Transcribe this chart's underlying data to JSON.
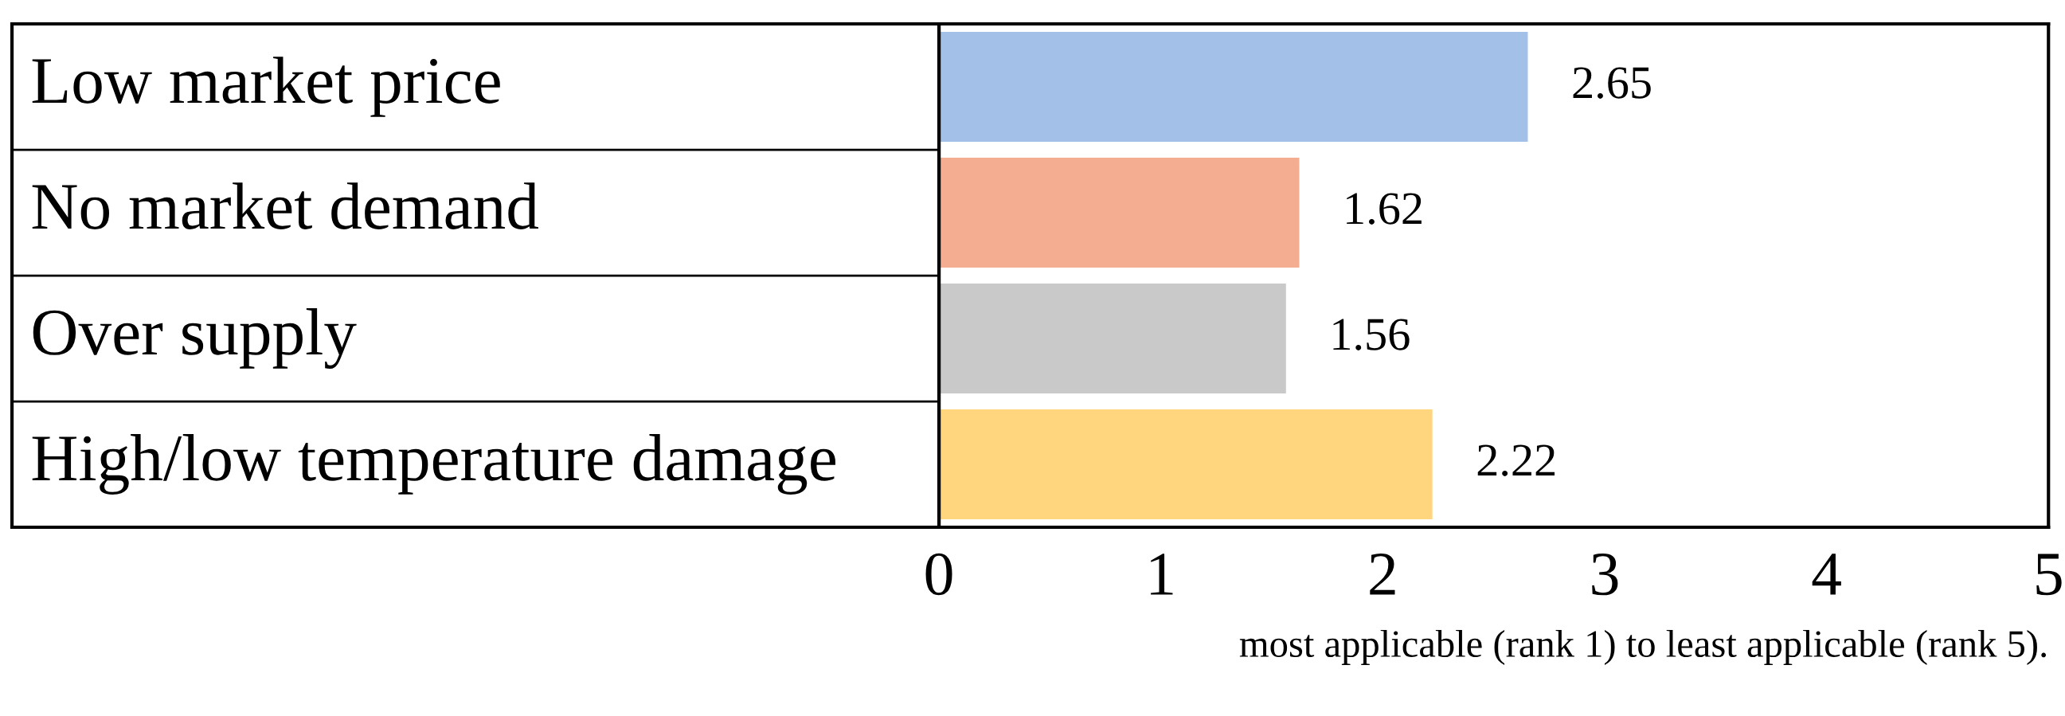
{
  "chart_data": {
    "type": "bar",
    "orientation": "horizontal",
    "xlabel": "most applicable (rank 1) to least applicable (rank 5).",
    "categories": [
      "Low market price",
      "No market demand",
      "Over supply",
      "High/low temperature damage"
    ],
    "values": [
      2.65,
      1.62,
      1.56,
      2.22
    ],
    "colors": [
      "#a3c0e8",
      "#f4ad90",
      "#c9c9c9",
      "#ffd57e"
    ],
    "xlim": [
      0,
      5
    ],
    "xticks": [
      0,
      1,
      2,
      3,
      4,
      5
    ],
    "grid": false,
    "data_labels": true,
    "tick_labels": "x"
  }
}
